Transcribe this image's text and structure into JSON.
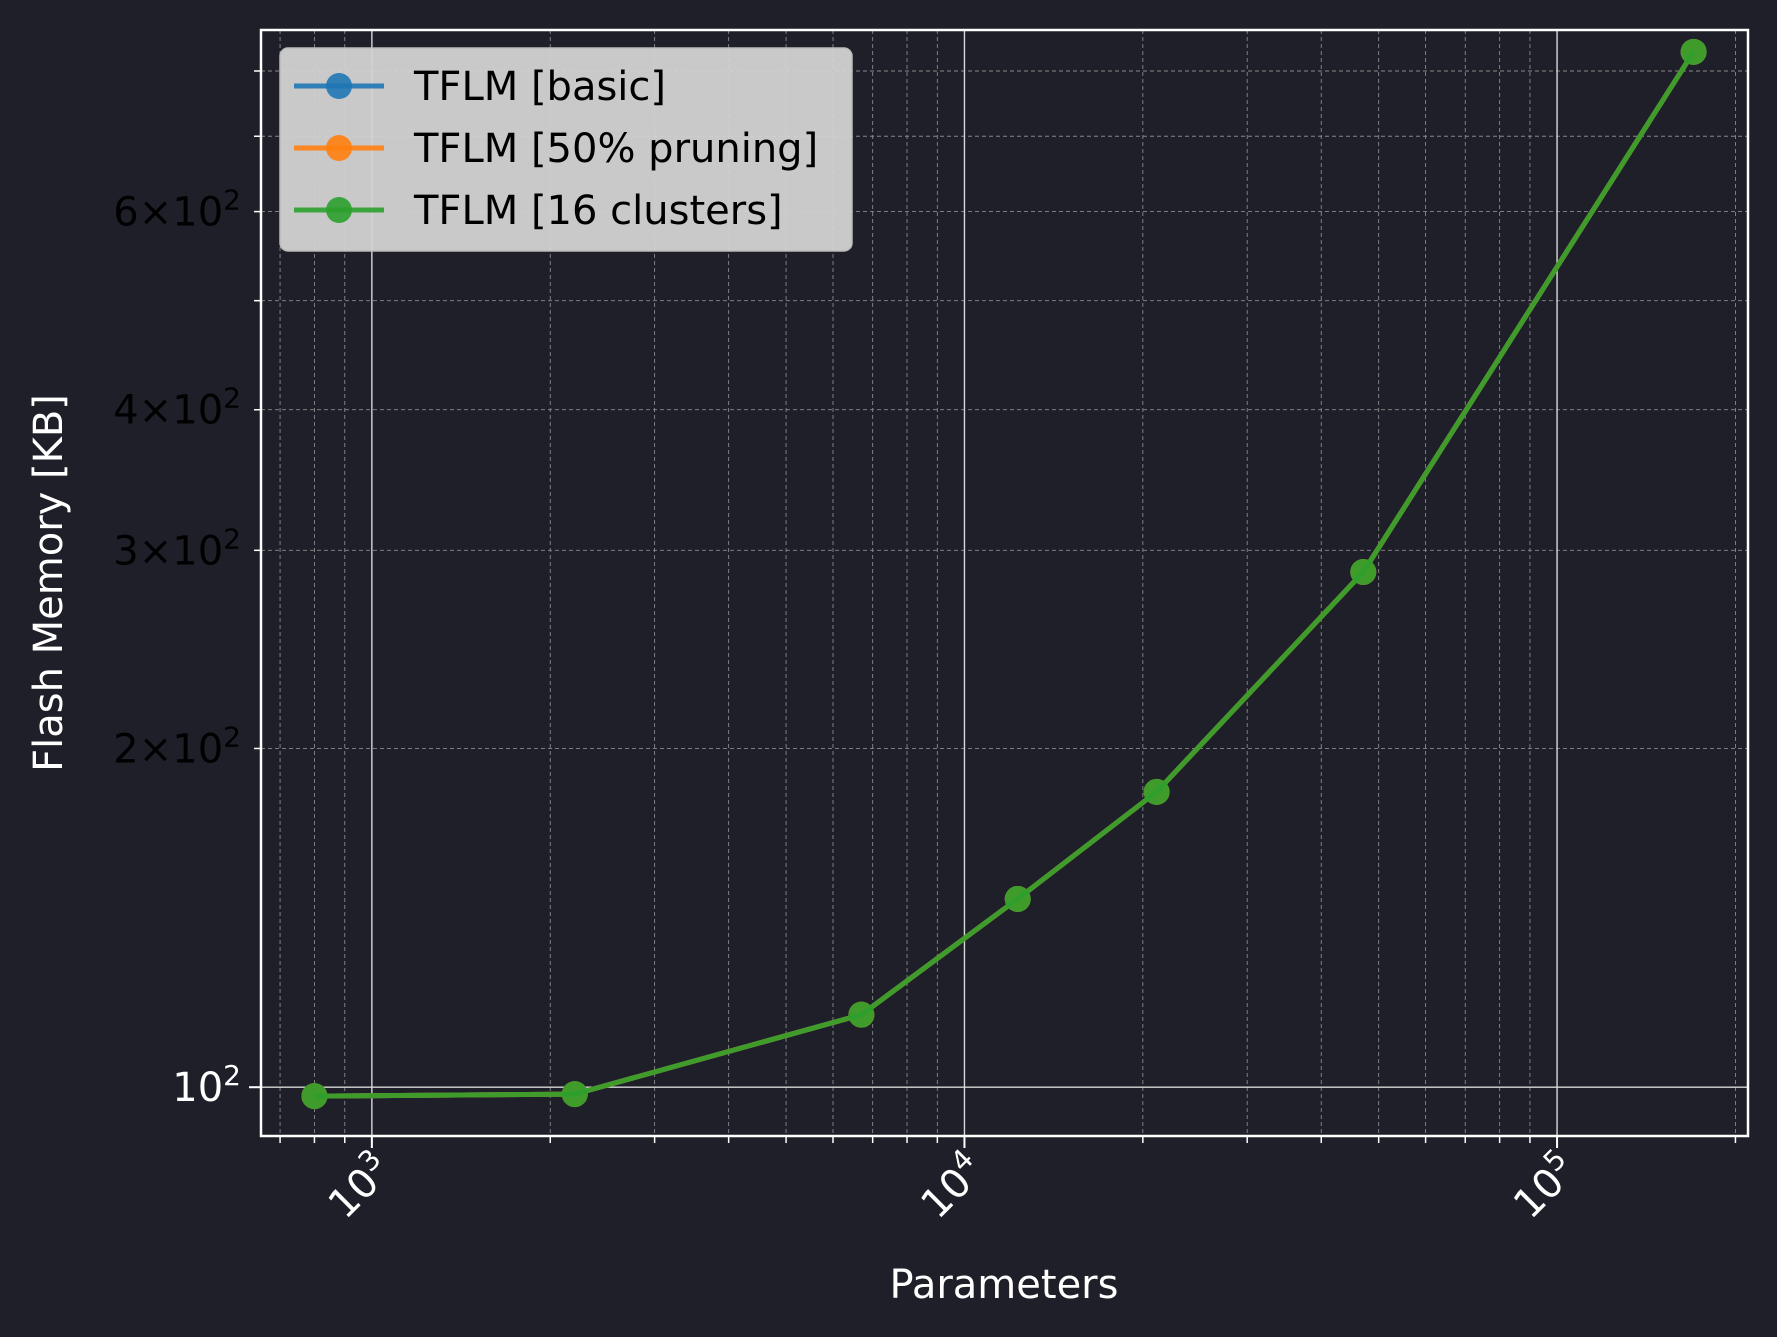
{
  "chart_data": {
    "type": "line",
    "title": "",
    "xlabel": "Parameters",
    "ylabel": "Flash Memory [KB]",
    "x_scale": "log",
    "y_scale": "log",
    "xlim": [
      650,
      210000
    ],
    "ylim": [
      90.5,
      870
    ],
    "x_ticks": [
      {
        "value": 1000,
        "base": "10",
        "exp": "3"
      },
      {
        "value": 10000,
        "base": "10",
        "exp": "4"
      },
      {
        "value": 100000,
        "base": "10",
        "exp": "5"
      }
    ],
    "y_ticks": [
      {
        "value": 100,
        "coef": "",
        "base": "10",
        "exp": "2"
      },
      {
        "value": 200,
        "coef": "2",
        "base": "10",
        "exp": "2"
      },
      {
        "value": 300,
        "coef": "3",
        "base": "10",
        "exp": "2"
      },
      {
        "value": 400,
        "coef": "4",
        "base": "10",
        "exp": "2"
      },
      {
        "value": 600,
        "coef": "6",
        "base": "10",
        "exp": "2"
      }
    ],
    "grid": true,
    "legend_position": "top-left",
    "series": [
      {
        "name": "TFLM [basic]",
        "color": "#1f77b4",
        "x": [
          800,
          2200,
          6700,
          12300,
          21100,
          47100,
          170000
        ],
        "y": [
          98.2,
          98.6,
          116,
          147,
          183,
          287,
          832
        ]
      },
      {
        "name": "TFLM [50% pruning]",
        "color": "#ff7f0e",
        "x": [
          800,
          2200,
          6700,
          12300,
          21100,
          47100,
          170000
        ],
        "y": [
          98.2,
          98.6,
          116,
          147,
          183,
          287,
          832
        ]
      },
      {
        "name": "TFLM [16 clusters]",
        "color": "#2ca02c",
        "x": [
          800,
          2200,
          6700,
          12300,
          21100,
          47100,
          170000
        ],
        "y": [
          98.2,
          98.6,
          116,
          147,
          183,
          287,
          832
        ]
      }
    ],
    "colors": {
      "background": "#1e1f28",
      "axes_frame": "#ffffff",
      "legend_bg": "#d3d3d3"
    }
  }
}
